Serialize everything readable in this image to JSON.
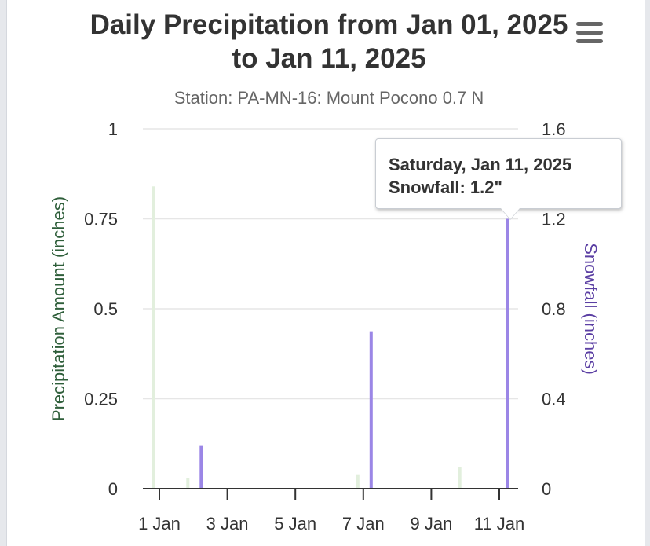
{
  "chart_data": {
    "type": "bar",
    "title": "Daily Precipitation from Jan 01, 2025 to Jan 11, 2025",
    "subtitle": "Station: PA-MN-16: Mount Pocono 0.7 N",
    "x_dates": [
      "Jan 1",
      "Jan 2",
      "Jan 3",
      "Jan 4",
      "Jan 5",
      "Jan 6",
      "Jan 7",
      "Jan 8",
      "Jan 9",
      "Jan 10",
      "Jan 11"
    ],
    "xticks": [
      "1 Jan",
      "3 Jan",
      "5 Jan",
      "7 Jan",
      "9 Jan",
      "11 Jan"
    ],
    "y_left": {
      "label": "Precipitation Amount (inches)",
      "range": [
        0,
        1
      ],
      "ticks": [
        "0",
        "0.25",
        "0.5",
        "0.75",
        "1"
      ]
    },
    "y_right": {
      "label": "Snowfall (inches)",
      "range": [
        0,
        1.6
      ],
      "ticks": [
        "0",
        "0.4",
        "0.8",
        "1.2",
        "1.6"
      ]
    },
    "grid": true,
    "series": [
      {
        "name": "",
        "axis": "left",
        "color": "#e2efdd",
        "values": [
          0.84,
          0.03,
          0,
          0,
          0,
          0,
          0.04,
          0,
          0,
          0.06,
          0
        ]
      },
      {
        "name": "Snowfall",
        "axis": "right",
        "color": "#9b86e6",
        "values": [
          0,
          0.19,
          0,
          0,
          0,
          0,
          0.7,
          0,
          0,
          0,
          1.2
        ]
      }
    ],
    "left_axis_color": "#2e5e3a",
    "right_axis_color": "#5b3fa3"
  },
  "tooltip": {
    "date": "Saturday, Jan 11, 2025",
    "value": "Snowfall: 1.2\""
  },
  "menu_icon": "hamburger-menu-icon"
}
